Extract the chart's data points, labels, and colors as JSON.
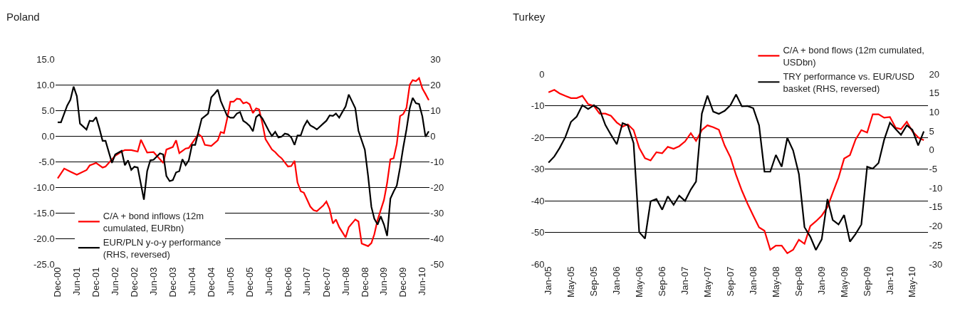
{
  "chart_data": [
    {
      "type": "line",
      "title": "Poland",
      "legend": "bottom left",
      "grid": "y",
      "xlim": [
        "2000-11-08",
        "2010-08-10"
      ],
      "xticks": [
        {
          "value": "2000-12",
          "label": "Dec-00"
        },
        {
          "value": "2001-06",
          "label": "Jun-01"
        },
        {
          "value": "2001-12",
          "label": "Dec-01"
        },
        {
          "value": "2002-06",
          "label": "Jun-02"
        },
        {
          "value": "2002-12",
          "label": "Dec-02"
        },
        {
          "value": "2003-06",
          "label": "Jun-03"
        },
        {
          "value": "2003-12",
          "label": "Dec-03"
        },
        {
          "value": "2004-06",
          "label": "Jun-04"
        },
        {
          "value": "2004-12",
          "label": "Dec-04"
        },
        {
          "value": "2005-06",
          "label": "Jun-05"
        },
        {
          "value": "2005-12",
          "label": "Dec-05"
        },
        {
          "value": "2006-06",
          "label": "Jun-06"
        },
        {
          "value": "2006-12",
          "label": "Dec-06"
        },
        {
          "value": "2007-06",
          "label": "Jun-07"
        },
        {
          "value": "2007-12",
          "label": "Dec-07"
        },
        {
          "value": "2008-06",
          "label": "Jun-08"
        },
        {
          "value": "2008-12",
          "label": "Dec-08"
        },
        {
          "value": "2009-06",
          "label": "Jun-09"
        },
        {
          "value": "2009-12",
          "label": "Dec-09"
        },
        {
          "value": "2010-06",
          "label": "Jun-10"
        }
      ],
      "ylim": [
        -25,
        15
      ],
      "yticks": [
        {
          "value": 15,
          "label": "15.0"
        },
        {
          "value": 10,
          "label": "10.0"
        },
        {
          "value": 5,
          "label": "5.0"
        },
        {
          "value": 0,
          "label": "0.0"
        },
        {
          "value": -5,
          "label": "-5.0"
        },
        {
          "value": -10,
          "label": "-10.0"
        },
        {
          "value": -15,
          "label": "-15.0"
        },
        {
          "value": -20,
          "label": "-20.0"
        },
        {
          "value": -25,
          "label": "-25.0"
        }
      ],
      "y2lim": [
        -50,
        30
      ],
      "y2ticks": [
        30,
        20,
        10,
        0,
        -10,
        -20,
        -30,
        -40,
        -50
      ],
      "series": [
        {
          "name": "C/A + bond inflows (12m cumulated, EURbn)",
          "color": "#ff0000",
          "x": [
            "2000-12",
            "2001-02",
            "2001-04",
            "2001-06",
            "2001-09",
            "2001-10",
            "2001-12",
            "2002-02",
            "2002-03",
            "2002-06",
            "2002-08",
            "2002-09",
            "2002-11",
            "2003-01",
            "2003-02",
            "2003-04",
            "2003-06",
            "2003-07",
            "2003-09",
            "2003-10",
            "2003-12",
            "2004-01",
            "2004-02",
            "2004-04",
            "2004-05",
            "2004-08",
            "2004-09",
            "2004-10",
            "2004-12",
            "2005-02",
            "2005-03",
            "2005-04",
            "2005-05",
            "2005-06",
            "2005-07",
            "2005-08",
            "2005-09",
            "2005-10",
            "2005-11",
            "2005-12",
            "2006-01",
            "2006-02",
            "2006-03",
            "2006-04",
            "2006-05",
            "2006-07",
            "2006-08",
            "2006-09",
            "2006-10",
            "2006-12",
            "2007-01",
            "2007-02",
            "2007-03",
            "2007-04",
            "2007-05",
            "2007-07",
            "2007-08",
            "2007-09",
            "2007-11",
            "2007-12",
            "2008-01",
            "2008-02",
            "2008-03",
            "2008-04",
            "2008-06",
            "2008-07",
            "2008-09",
            "2008-10",
            "2008-11",
            "2009-01",
            "2009-02",
            "2009-03",
            "2009-04",
            "2009-06",
            "2009-07",
            "2009-08",
            "2009-09",
            "2009-10",
            "2009-11",
            "2009-12",
            "2010-01",
            "2010-02",
            "2010-03",
            "2010-04",
            "2010-05",
            "2010-06",
            "2010-07",
            "2010-08"
          ],
          "values": [
            -8.2,
            -6.3,
            -6.9,
            -7.5,
            -6.6,
            -5.7,
            -5.2,
            -6.1,
            -5.9,
            -3.8,
            -3.0,
            -2.7,
            -2.7,
            -3.0,
            -0.7,
            -3.2,
            -3.1,
            -3.8,
            -5.2,
            -2.6,
            -2.1,
            -0.8,
            -3.3,
            -2.4,
            -2.3,
            0.4,
            -0.1,
            -1.7,
            -1.9,
            -0.8,
            0.8,
            0.6,
            3.4,
            6.7,
            6.7,
            7.3,
            7.2,
            6.4,
            6.6,
            6.2,
            4.5,
            5.4,
            5.2,
            2.5,
            -0.6,
            -2.6,
            -3.1,
            -3.8,
            -4.3,
            -5.9,
            -5.8,
            -4.8,
            -9.0,
            -10.7,
            -11.0,
            -13.7,
            -14.4,
            -14.6,
            -13.5,
            -12.7,
            -14.2,
            -17.0,
            -16.2,
            -17.7,
            -19.7,
            -17.7,
            -16.2,
            -16.6,
            -20.9,
            -21.4,
            -20.8,
            -19.1,
            -16.3,
            -12.4,
            -9.1,
            -4.5,
            -4.3,
            -1.5,
            3.9,
            4.3,
            5.5,
            10.0,
            10.9,
            10.7,
            11.3,
            9.3,
            8.2,
            7.0
          ]
        },
        {
          "name": "EUR/PLN y-o-y performance (RHS, reversed)",
          "color": "#000000",
          "axis": "y2",
          "x": [
            "2000-12",
            "2001-01",
            "2001-03",
            "2001-04",
            "2001-05",
            "2001-06",
            "2001-07",
            "2001-09",
            "2001-10",
            "2001-11",
            "2001-12",
            "2002-01",
            "2002-02",
            "2002-03",
            "2002-05",
            "2002-06",
            "2002-08",
            "2002-09",
            "2002-10",
            "2002-11",
            "2002-12",
            "2003-01",
            "2003-03",
            "2003-04",
            "2003-05",
            "2003-06",
            "2003-08",
            "2003-09",
            "2003-10",
            "2003-11",
            "2003-12",
            "2004-01",
            "2004-02",
            "2004-03",
            "2004-04",
            "2004-05",
            "2004-06",
            "2004-07",
            "2004-09",
            "2004-11",
            "2004-12",
            "2005-01",
            "2005-02",
            "2005-03",
            "2005-05",
            "2005-06",
            "2005-07",
            "2005-08",
            "2005-09",
            "2005-10",
            "2005-11",
            "2005-12",
            "2006-01",
            "2006-02",
            "2006-03",
            "2006-04",
            "2006-06",
            "2006-07",
            "2006-08",
            "2006-09",
            "2006-10",
            "2006-11",
            "2006-12",
            "2007-01",
            "2007-02",
            "2007-03",
            "2007-04",
            "2007-05",
            "2007-06",
            "2007-07",
            "2007-08",
            "2007-09",
            "2007-11",
            "2007-12",
            "2008-01",
            "2008-02",
            "2008-03",
            "2008-04",
            "2008-05",
            "2008-06",
            "2008-07",
            "2008-09",
            "2008-10",
            "2008-12",
            "2009-01",
            "2009-02",
            "2009-03",
            "2009-04",
            "2009-05",
            "2009-06",
            "2009-07",
            "2009-08",
            "2009-09",
            "2009-10",
            "2009-11",
            "2009-12",
            "2010-01",
            "2010-02",
            "2010-03",
            "2010-04",
            "2010-05",
            "2010-06",
            "2010-07",
            "2010-08"
          ],
          "values": [
            5.4,
            5.4,
            11.9,
            14.2,
            19.3,
            15.6,
            4.9,
            2.6,
            6.0,
            5.8,
            7.4,
            3.1,
            -1.8,
            -1.8,
            -10.4,
            -7.1,
            -5.7,
            -11.3,
            -9.4,
            -13.1,
            -11.9,
            -12.2,
            -24.7,
            -13.6,
            -9.4,
            -9.2,
            -6.7,
            -7.1,
            -15.5,
            -17.5,
            -17.1,
            -14.1,
            -13.6,
            -9.0,
            -11.3,
            -9.4,
            -3.4,
            -3.4,
            6.8,
            8.8,
            15.1,
            16.5,
            18.1,
            13.7,
            7.9,
            7.2,
            7.2,
            8.8,
            9.4,
            6.0,
            5.1,
            4.0,
            1.9,
            7.5,
            8.4,
            6.9,
            2.1,
            0.1,
            1.7,
            -0.5,
            -0.2,
            1.0,
            0.7,
            -0.5,
            -3.4,
            0.3,
            0.3,
            3.8,
            6.0,
            4.2,
            3.5,
            2.6,
            4.9,
            6.0,
            8.1,
            7.9,
            8.8,
            7.2,
            9.4,
            11.6,
            16.2,
            10.9,
            2.1,
            -5.3,
            -15.5,
            -27.5,
            -32.1,
            -34.4,
            -31.2,
            -34.4,
            -38.8,
            -24.3,
            -21.5,
            -19.2,
            -12.2,
            -4.4,
            2.6,
            10.9,
            14.9,
            12.8,
            12.5,
            7.7,
            -0.2,
            1.9
          ]
        }
      ]
    },
    {
      "type": "line",
      "title": "Turkey",
      "legend": "top right",
      "grid": "y",
      "xlim": [
        "2004-12-14",
        "2010-07-25"
      ],
      "xticks": [
        {
          "value": "2005-01",
          "label": "Jan-05"
        },
        {
          "value": "2005-05",
          "label": "May-05"
        },
        {
          "value": "2005-09",
          "label": "Sep-05"
        },
        {
          "value": "2006-01",
          "label": "Jan-06"
        },
        {
          "value": "2006-05",
          "label": "May-06"
        },
        {
          "value": "2006-09",
          "label": "Sep-06"
        },
        {
          "value": "2007-01",
          "label": "Jan-07"
        },
        {
          "value": "2007-05",
          "label": "May-07"
        },
        {
          "value": "2007-09",
          "label": "Sep-07"
        },
        {
          "value": "2008-01",
          "label": "Jan-08"
        },
        {
          "value": "2008-05",
          "label": "May-08"
        },
        {
          "value": "2008-09",
          "label": "Sep-08"
        },
        {
          "value": "2009-01",
          "label": "Jan-09"
        },
        {
          "value": "2009-05",
          "label": "May-09"
        },
        {
          "value": "2009-09",
          "label": "Sep-09"
        },
        {
          "value": "2010-01",
          "label": "Jan-10"
        },
        {
          "value": "2010-05",
          "label": "May-10"
        }
      ],
      "ylim": [
        -60,
        0
      ],
      "yticks": [
        0,
        -10,
        -20,
        -30,
        -40,
        -50,
        -60
      ],
      "y2lim": [
        -30,
        20
      ],
      "y2ticks": [
        20,
        15,
        10,
        5,
        0,
        -5,
        -10,
        -15,
        -20,
        -25,
        -30
      ],
      "series": [
        {
          "name": "C/A + bond flows (12m cumulated, USDbn)",
          "color": "#ff0000",
          "x": [
            "2005-01",
            "2005-02",
            "2005-03",
            "2005-04",
            "2005-05",
            "2005-06",
            "2005-07",
            "2005-08",
            "2005-09",
            "2005-10",
            "2005-11",
            "2005-12",
            "2006-01",
            "2006-02",
            "2006-03",
            "2006-04",
            "2006-05",
            "2006-06",
            "2006-07",
            "2006-08",
            "2006-09",
            "2006-10",
            "2006-11",
            "2006-12",
            "2007-01",
            "2007-02",
            "2007-03",
            "2007-04",
            "2007-05",
            "2007-06",
            "2007-07",
            "2007-08",
            "2007-09",
            "2007-10",
            "2007-11",
            "2007-12",
            "2008-01",
            "2008-02",
            "2008-03",
            "2008-04",
            "2008-05",
            "2008-06",
            "2008-07",
            "2008-08",
            "2008-09",
            "2008-10",
            "2008-11",
            "2008-12",
            "2009-01",
            "2009-02",
            "2009-03",
            "2009-04",
            "2009-05",
            "2009-06",
            "2009-07",
            "2009-08",
            "2009-09",
            "2009-10",
            "2009-11",
            "2009-12",
            "2010-01",
            "2010-02",
            "2010-03",
            "2010-04",
            "2010-05",
            "2010-06",
            "2010-07"
          ],
          "values": [
            -5.8,
            -5.0,
            -6.1,
            -6.9,
            -7.6,
            -7.6,
            -6.9,
            -9.5,
            -10.1,
            -12.5,
            -12.5,
            -13.2,
            -15.3,
            -16.6,
            -15.9,
            -17.7,
            -23.3,
            -26.6,
            -27.3,
            -24.7,
            -25.0,
            -23.0,
            -23.6,
            -22.8,
            -21.3,
            -18.7,
            -21.1,
            -17.7,
            -16.2,
            -16.8,
            -17.6,
            -22.6,
            -26.3,
            -31.9,
            -36.8,
            -40.9,
            -44.7,
            -48.4,
            -49.5,
            -55.5,
            -54.2,
            -54.2,
            -56.6,
            -55.5,
            -52.3,
            -53.6,
            -48.0,
            -46.5,
            -44.7,
            -42.0,
            -37.5,
            -32.7,
            -26.7,
            -25.6,
            -20.7,
            -17.7,
            -18.5,
            -12.7,
            -12.7,
            -13.8,
            -13.6,
            -17.0,
            -17.4,
            -15.1,
            -18.1,
            -20.0,
            -20.9
          ]
        },
        {
          "name": "TRY performance vs. EUR/USD basket (RHS, reversed)",
          "color": "#000000",
          "axis": "y2",
          "x": [
            "2005-01",
            "2005-02",
            "2005-03",
            "2005-04",
            "2005-05",
            "2005-06",
            "2005-07",
            "2005-08",
            "2005-09",
            "2005-10",
            "2005-11",
            "2005-12",
            "2006-01",
            "2006-02",
            "2006-03",
            "2006-04",
            "2006-05",
            "2006-06",
            "2006-07",
            "2006-08",
            "2006-09",
            "2006-10",
            "2006-11",
            "2006-12",
            "2007-01",
            "2007-02",
            "2007-03",
            "2007-04",
            "2007-05",
            "2007-06",
            "2007-07",
            "2007-08",
            "2007-09",
            "2007-10",
            "2007-11",
            "2007-12",
            "2008-01",
            "2008-02",
            "2008-03",
            "2008-04",
            "2008-05",
            "2008-06",
            "2008-07",
            "2008-08",
            "2008-09",
            "2008-10",
            "2008-11",
            "2008-12",
            "2009-01",
            "2009-02",
            "2009-03",
            "2009-04",
            "2009-05",
            "2009-06",
            "2009-07",
            "2009-08",
            "2009-09",
            "2009-10",
            "2009-11",
            "2009-12",
            "2010-01",
            "2010-02",
            "2010-03",
            "2010-04",
            "2010-05",
            "2010-06",
            "2010-07"
          ],
          "values": [
            -3.3,
            -1.7,
            0.5,
            3.4,
            7.4,
            8.8,
            11.8,
            10.8,
            11.8,
            10.7,
            6.6,
            4.0,
            1.5,
            7.1,
            6.5,
            1.8,
            -21.6,
            -23.3,
            -13.5,
            -12.9,
            -15.7,
            -12.2,
            -14.4,
            -12.0,
            -13.4,
            -10.4,
            -8.3,
            9.6,
            14.3,
            10.1,
            9.5,
            10.3,
            11.8,
            14.6,
            11.5,
            11.6,
            11.0,
            6.5,
            -5.7,
            -5.7,
            -1.3,
            -4.4,
            3.2,
            -0.1,
            -6.3,
            -20.3,
            -22.8,
            -26.3,
            -23.5,
            -12.9,
            -18.4,
            -19.6,
            -17.1,
            -24.1,
            -22.1,
            -19.6,
            -4.4,
            -4.9,
            -3.4,
            2.7,
            7.2,
            5.5,
            4.0,
            6.5,
            5.3,
            1.2,
            4.9
          ]
        }
      ]
    }
  ]
}
